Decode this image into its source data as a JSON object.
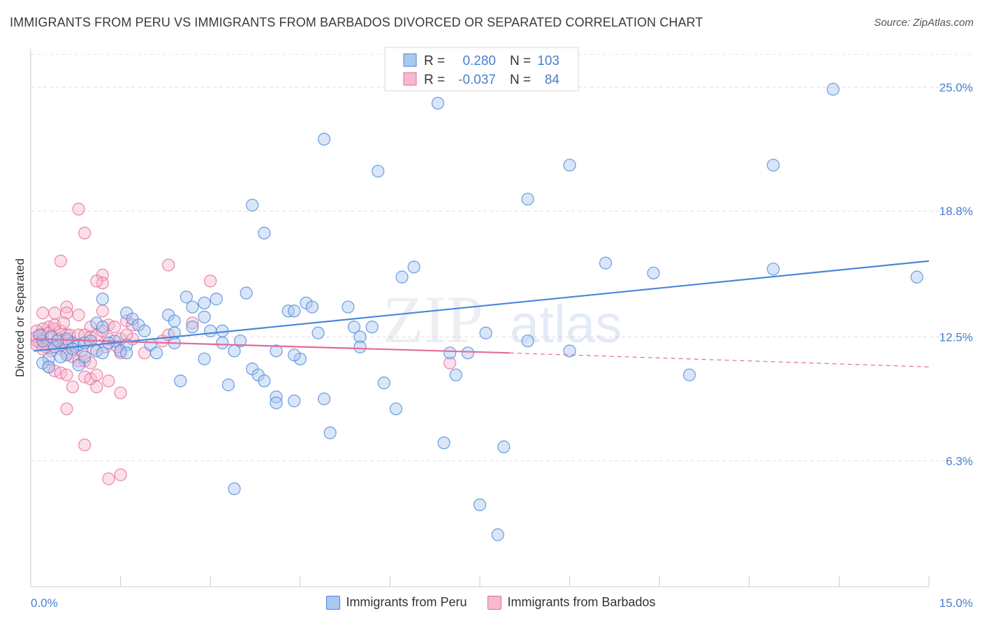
{
  "title": "IMMIGRANTS FROM PERU VS IMMIGRANTS FROM BARBADOS DIVORCED OR SEPARATED CORRELATION CHART",
  "source": "Source: ZipAtlas.com",
  "watermark": {
    "zip": "ZIP",
    "atlas": "atlas"
  },
  "colors": {
    "blue": "#4a86d8",
    "blue_fill": "#aac8f0",
    "pink": "#e36b99",
    "pink_fill": "#f6b9cf",
    "axis_label": "#4a7fd0",
    "grid": "#dddddd"
  },
  "stats_legend": {
    "rows": [
      {
        "r_label": "R =",
        "r_value": "0.280",
        "n_label": "N =",
        "n_value": "103"
      },
      {
        "r_label": "R =",
        "r_value": "-0.037",
        "n_label": "N =",
        "n_value": "84"
      }
    ]
  },
  "bottom_legend": [
    "Immigrants from Peru",
    "Immigrants from Barbados"
  ],
  "chart_data": {
    "type": "scatter",
    "xlabel": "",
    "ylabel": "Divorced or Separated",
    "xlim": [
      0,
      15
    ],
    "ylim": [
      0,
      26.5
    ],
    "x_tick_labels": [
      "0.0%",
      "15.0%"
    ],
    "y_tick_values": [
      6.3,
      12.5,
      18.8,
      25.0
    ],
    "y_tick_labels": [
      "6.3%",
      "12.5%",
      "18.8%",
      "25.0%"
    ],
    "grid": "horizontal dashed",
    "series": [
      {
        "name": "Immigrants from Peru",
        "trend": {
          "x": [
            0.05,
            15.0
          ],
          "y": [
            11.8,
            16.3
          ]
        },
        "points": [
          [
            13.4,
            24.9
          ],
          [
            6.8,
            24.2
          ],
          [
            4.9,
            22.4
          ],
          [
            5.8,
            20.8
          ],
          [
            9.0,
            21.1
          ],
          [
            12.4,
            21.1
          ],
          [
            8.3,
            19.4
          ],
          [
            3.7,
            19.1
          ],
          [
            3.9,
            17.7
          ],
          [
            9.6,
            16.2
          ],
          [
            12.4,
            15.9
          ],
          [
            10.4,
            15.7
          ],
          [
            14.8,
            15.5
          ],
          [
            6.4,
            16.0
          ],
          [
            6.2,
            15.5
          ],
          [
            3.6,
            14.7
          ],
          [
            2.6,
            14.5
          ],
          [
            3.1,
            14.4
          ],
          [
            1.2,
            14.4
          ],
          [
            2.9,
            14.2
          ],
          [
            2.7,
            14.0
          ],
          [
            4.6,
            14.2
          ],
          [
            4.7,
            14.0
          ],
          [
            5.3,
            14.0
          ],
          [
            4.3,
            13.8
          ],
          [
            4.4,
            13.8
          ],
          [
            2.3,
            13.6
          ],
          [
            2.9,
            13.5
          ],
          [
            1.6,
            13.7
          ],
          [
            1.7,
            13.4
          ],
          [
            2.4,
            13.3
          ],
          [
            1.1,
            13.2
          ],
          [
            1.8,
            13.1
          ],
          [
            1.2,
            13.0
          ],
          [
            1.9,
            12.8
          ],
          [
            2.4,
            12.7
          ],
          [
            3.0,
            12.8
          ],
          [
            3.2,
            12.8
          ],
          [
            4.8,
            12.7
          ],
          [
            5.7,
            13.0
          ],
          [
            5.4,
            13.0
          ],
          [
            5.5,
            12.5
          ],
          [
            7.6,
            12.7
          ],
          [
            8.3,
            12.3
          ],
          [
            1.4,
            12.3
          ],
          [
            1.3,
            12.2
          ],
          [
            0.7,
            12.2
          ],
          [
            0.8,
            12.1
          ],
          [
            0.9,
            12.2
          ],
          [
            1.6,
            12.1
          ],
          [
            2.0,
            12.1
          ],
          [
            2.4,
            12.2
          ],
          [
            3.2,
            12.2
          ],
          [
            3.5,
            12.3
          ],
          [
            5.5,
            12.0
          ],
          [
            1.1,
            11.8
          ],
          [
            1.5,
            11.8
          ],
          [
            1.6,
            11.7
          ],
          [
            2.1,
            11.7
          ],
          [
            3.4,
            11.8
          ],
          [
            4.1,
            11.8
          ],
          [
            7.0,
            11.7
          ],
          [
            7.3,
            11.7
          ],
          [
            9.0,
            11.8
          ],
          [
            0.2,
            12.3
          ],
          [
            0.6,
            11.6
          ],
          [
            0.5,
            11.5
          ],
          [
            0.3,
            11.4
          ],
          [
            0.2,
            11.2
          ],
          [
            0.3,
            11.0
          ],
          [
            0.8,
            11.1
          ],
          [
            2.9,
            11.4
          ],
          [
            4.5,
            11.4
          ],
          [
            4.4,
            11.6
          ],
          [
            3.7,
            10.9
          ],
          [
            3.8,
            10.6
          ],
          [
            3.9,
            10.3
          ],
          [
            2.5,
            10.3
          ],
          [
            3.3,
            10.1
          ],
          [
            5.9,
            10.2
          ],
          [
            7.1,
            10.6
          ],
          [
            11.0,
            10.6
          ],
          [
            4.1,
            9.5
          ],
          [
            4.4,
            9.3
          ],
          [
            4.1,
            9.2
          ],
          [
            4.9,
            9.4
          ],
          [
            6.1,
            8.9
          ],
          [
            5.0,
            7.7
          ],
          [
            6.9,
            7.2
          ],
          [
            7.9,
            7.0
          ],
          [
            3.4,
            4.9
          ],
          [
            7.5,
            4.1
          ],
          [
            7.8,
            2.6
          ],
          [
            0.6,
            12.4
          ],
          [
            1.0,
            12.3
          ],
          [
            0.4,
            12.0
          ],
          [
            0.15,
            12.6
          ],
          [
            0.35,
            12.5
          ],
          [
            0.45,
            12.3
          ],
          [
            0.7,
            11.9
          ],
          [
            0.9,
            11.5
          ],
          [
            1.2,
            11.7
          ],
          [
            2.7,
            13.0
          ]
        ]
      },
      {
        "name": "Immigrants from Barbados",
        "trend": {
          "x": [
            0.05,
            8.0
          ],
          "y": [
            12.4,
            11.7
          ]
        },
        "trend_dashed": {
          "x": [
            8.0,
            15.0
          ],
          "y": [
            11.7,
            11.0
          ]
        },
        "points": [
          [
            0.8,
            18.9
          ],
          [
            0.9,
            17.7
          ],
          [
            0.5,
            16.3
          ],
          [
            2.3,
            16.1
          ],
          [
            1.2,
            15.6
          ],
          [
            1.2,
            15.2
          ],
          [
            3.0,
            15.3
          ],
          [
            1.1,
            15.3
          ],
          [
            0.6,
            14.0
          ],
          [
            0.6,
            13.7
          ],
          [
            0.2,
            13.7
          ],
          [
            0.4,
            13.7
          ],
          [
            1.2,
            13.8
          ],
          [
            2.7,
            13.2
          ],
          [
            1.0,
            13.0
          ],
          [
            1.3,
            13.1
          ],
          [
            1.6,
            13.3
          ],
          [
            1.7,
            13.1
          ],
          [
            0.3,
            13.0
          ],
          [
            0.4,
            12.9
          ],
          [
            0.2,
            12.9
          ],
          [
            0.1,
            12.8
          ],
          [
            0.5,
            12.8
          ],
          [
            0.6,
            12.6
          ],
          [
            0.65,
            12.6
          ],
          [
            0.8,
            12.6
          ],
          [
            0.9,
            12.6
          ],
          [
            1.0,
            12.5
          ],
          [
            1.1,
            12.6
          ],
          [
            1.3,
            12.4
          ],
          [
            1.5,
            12.4
          ],
          [
            1.7,
            12.4
          ],
          [
            2.2,
            12.3
          ],
          [
            2.3,
            12.6
          ],
          [
            0.1,
            12.3
          ],
          [
            0.2,
            12.3
          ],
          [
            0.3,
            12.1
          ],
          [
            0.4,
            12.0
          ],
          [
            0.5,
            11.9
          ],
          [
            0.6,
            11.7
          ],
          [
            0.7,
            11.5
          ],
          [
            0.8,
            11.3
          ],
          [
            0.9,
            11.3
          ],
          [
            1.0,
            11.2
          ],
          [
            1.5,
            11.7
          ],
          [
            1.9,
            11.7
          ],
          [
            0.3,
            11.0
          ],
          [
            0.4,
            10.8
          ],
          [
            0.5,
            10.7
          ],
          [
            0.6,
            10.6
          ],
          [
            0.9,
            10.5
          ],
          [
            1.0,
            10.4
          ],
          [
            1.1,
            10.6
          ],
          [
            1.3,
            10.3
          ],
          [
            0.7,
            10.0
          ],
          [
            1.1,
            10.0
          ],
          [
            1.5,
            9.7
          ],
          [
            0.6,
            8.9
          ],
          [
            0.9,
            7.1
          ],
          [
            1.3,
            5.4
          ],
          [
            1.5,
            5.6
          ],
          [
            0.1,
            12.5
          ],
          [
            0.15,
            12.2
          ],
          [
            0.25,
            12.0
          ],
          [
            0.35,
            11.8
          ],
          [
            0.45,
            12.4
          ],
          [
            0.55,
            12.2
          ],
          [
            0.75,
            12.0
          ],
          [
            0.85,
            11.8
          ],
          [
            1.05,
            11.9
          ],
          [
            1.25,
            12.0
          ],
          [
            1.45,
            12.0
          ],
          [
            0.2,
            12.6
          ],
          [
            0.3,
            12.7
          ],
          [
            0.6,
            12.3
          ],
          [
            1.2,
            12.8
          ],
          [
            1.6,
            12.6
          ],
          [
            0.1,
            12.1
          ],
          [
            0.2,
            11.9
          ],
          [
            0.4,
            13.1
          ],
          [
            7.0,
            11.2
          ],
          [
            0.8,
            13.6
          ],
          [
            1.4,
            13.0
          ],
          [
            0.55,
            13.2
          ]
        ]
      }
    ]
  }
}
